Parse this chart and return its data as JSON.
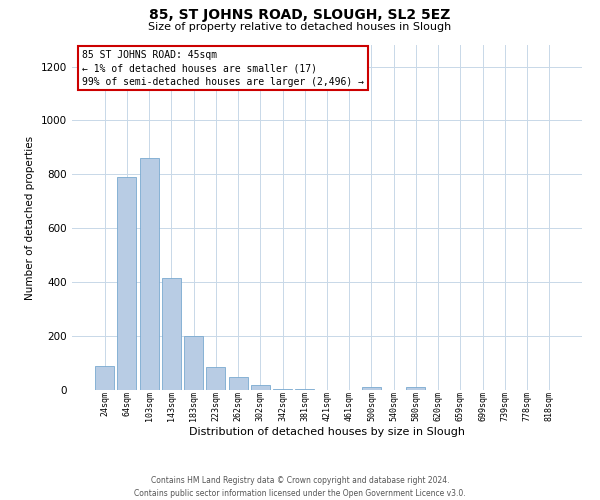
{
  "title": "85, ST JOHNS ROAD, SLOUGH, SL2 5EZ",
  "subtitle": "Size of property relative to detached houses in Slough",
  "xlabel": "Distribution of detached houses by size in Slough",
  "ylabel": "Number of detached properties",
  "bar_labels": [
    "24sqm",
    "64sqm",
    "103sqm",
    "143sqm",
    "183sqm",
    "223sqm",
    "262sqm",
    "302sqm",
    "342sqm",
    "381sqm",
    "421sqm",
    "461sqm",
    "500sqm",
    "540sqm",
    "580sqm",
    "620sqm",
    "659sqm",
    "699sqm",
    "739sqm",
    "778sqm",
    "818sqm"
  ],
  "bar_values": [
    90,
    790,
    860,
    415,
    200,
    85,
    50,
    20,
    5,
    5,
    0,
    0,
    10,
    0,
    10,
    0,
    0,
    0,
    0,
    0,
    0
  ],
  "bar_color": "#b8cce4",
  "bar_edgecolor": "#7aaad0",
  "annotation_title": "85 ST JOHNS ROAD: 45sqm",
  "annotation_line2": "← 1% of detached houses are smaller (17)",
  "annotation_line3": "99% of semi-detached houses are larger (2,496) →",
  "annotation_box_edgecolor": "#cc0000",
  "ylim": [
    0,
    1280
  ],
  "yticks": [
    0,
    200,
    400,
    600,
    800,
    1000,
    1200
  ],
  "footer_line1": "Contains HM Land Registry data © Crown copyright and database right 2024.",
  "footer_line2": "Contains public sector information licensed under the Open Government Licence v3.0.",
  "bg_color": "#ffffff",
  "grid_color": "#c8d8e8",
  "title_fontsize": 10,
  "subtitle_fontsize": 8,
  "xlabel_fontsize": 8,
  "ylabel_fontsize": 7.5,
  "xtick_fontsize": 6,
  "ytick_fontsize": 7.5,
  "annot_fontsize": 7,
  "footer_fontsize": 5.5
}
